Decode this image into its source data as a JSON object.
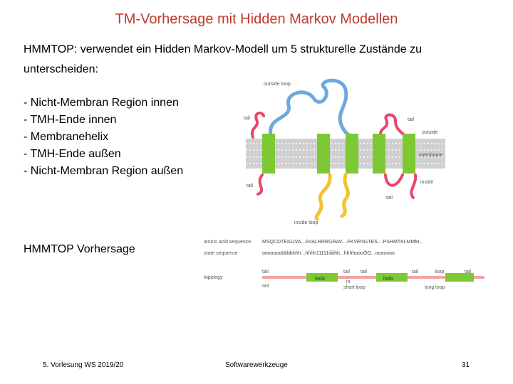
{
  "slide": {
    "title": "TM-Vorhersage mit Hidden Markov Modellen",
    "intro": "HMMTOP: verwendet ein Hidden Markov-Modell um 5 strukturelle Zustände zu unterscheiden:",
    "states": [
      "- Nicht-Membran Region innen",
      "- TMH-Ende innen",
      "- Membranehelix",
      "- TMH-Ende außen",
      "- Nicht-Membran Region außen"
    ],
    "prediction_label": "HMMTOP Vorhersage"
  },
  "figure_top": {
    "outside_loop": "outside loop",
    "tail_1": "tail",
    "tail_2": "tail",
    "outside": "outside",
    "membrane": "membrane",
    "tail_3": "tail",
    "tail_4": "tail",
    "inside": "inside",
    "inside_loop": "inside loop"
  },
  "figure_bottom": {
    "aa_label": "amino acid sequence",
    "aa_seq": "MSQCDTEIGLVA...SVALRRRGRAV....FKVENGTES....PSHMTKLMMM...",
    "state_label": "state sequence",
    "state_seq": "ooooooobbbbhhh...hhhh11111iiiiihh...hhhhoooOO...ooooooo",
    "topology_label": "topology",
    "tail_a": "tail",
    "helix_a": "helix",
    "tail_b": "tail",
    "tail_c": "tail",
    "helix_b": "helix",
    "tail_d": "tail",
    "loop": "loop",
    "tail_e": "tail",
    "out_label": "out",
    "in_label": "in",
    "short_loop": "short loop",
    "long_loop": "long loop"
  },
  "footer": {
    "left": "5. Vorlesung WS 2019/20",
    "middle": "Softwarewerkzeuge",
    "page": "31"
  },
  "colors": {
    "title": "#c0392b",
    "helix": "#7cc934",
    "outside_loop": "#6fa8dc",
    "tail_pink": "#e8476a",
    "inside_loop": "#f1c232",
    "membrane": "#c8c8c8",
    "topology_line": "#f4a3a3"
  }
}
